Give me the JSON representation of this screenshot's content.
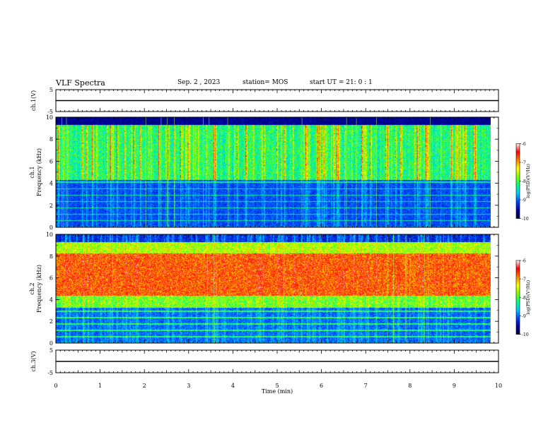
{
  "header": {
    "title": "VLF Spectra",
    "date": "Sep. 2 , 2023",
    "station": "station= MOS",
    "start": "start UT =  21: 0  : 1"
  },
  "chart_data": {
    "type": "heatmap",
    "xlabel": "Time (min)",
    "xlim": [
      0,
      10
    ],
    "x_ticks": [
      "0",
      "1",
      "2",
      "3",
      "4",
      "5",
      "6",
      "7",
      "8",
      "9",
      "10"
    ],
    "data_end_min": 9.83,
    "panels": [
      {
        "id": "ch1-waveform",
        "type": "line",
        "ylabel": "ch.1(V)",
        "ylim": [
          -5,
          5
        ],
        "y_ticks": [
          "5",
          "-5"
        ],
        "level": 0
      },
      {
        "id": "ch1-spectrogram",
        "type": "heatmap",
        "ylabel": "ch.1 Frequency (kHz)",
        "ylabel_lines": [
          "ch.1",
          "Frequency (kHz)"
        ],
        "ylim": [
          0,
          10
        ],
        "y_ticks": [
          "0",
          "2",
          "4",
          "6",
          "8",
          "10"
        ],
        "profile": "ch1",
        "colorbar": {
          "label": "log(PSD)(V²/Hz)",
          "range": [
            -10,
            -6
          ],
          "ticks": [
            "-6",
            "-7",
            "-8",
            "-9",
            "-10"
          ]
        }
      },
      {
        "id": "ch2-spectrogram",
        "type": "heatmap",
        "ylabel": "ch.2 Frequency (kHz)",
        "ylabel_lines": [
          "ch.2",
          "Frequency (kHz)"
        ],
        "ylim": [
          0,
          10
        ],
        "y_ticks": [
          "0",
          "2",
          "4",
          "6",
          "8",
          "10"
        ],
        "profile": "ch2",
        "colorbar": {
          "label": "log(PSD)(V²/Hz)",
          "range": [
            -10,
            -6
          ],
          "ticks": [
            "-6",
            "-7",
            "-8",
            "-9",
            "-10"
          ]
        }
      },
      {
        "id": "ch3-waveform",
        "type": "line",
        "ylabel": "ch.3(V)",
        "ylim": [
          -5,
          5
        ],
        "y_ticks": [
          "5",
          "-5"
        ],
        "level": 0
      }
    ],
    "colormap": [
      "#000033",
      "#0000a0",
      "#0044ff",
      "#00c8ff",
      "#00ff80",
      "#80ff00",
      "#ffff00",
      "#ff8000",
      "#ff0000",
      "#ffffff"
    ]
  }
}
